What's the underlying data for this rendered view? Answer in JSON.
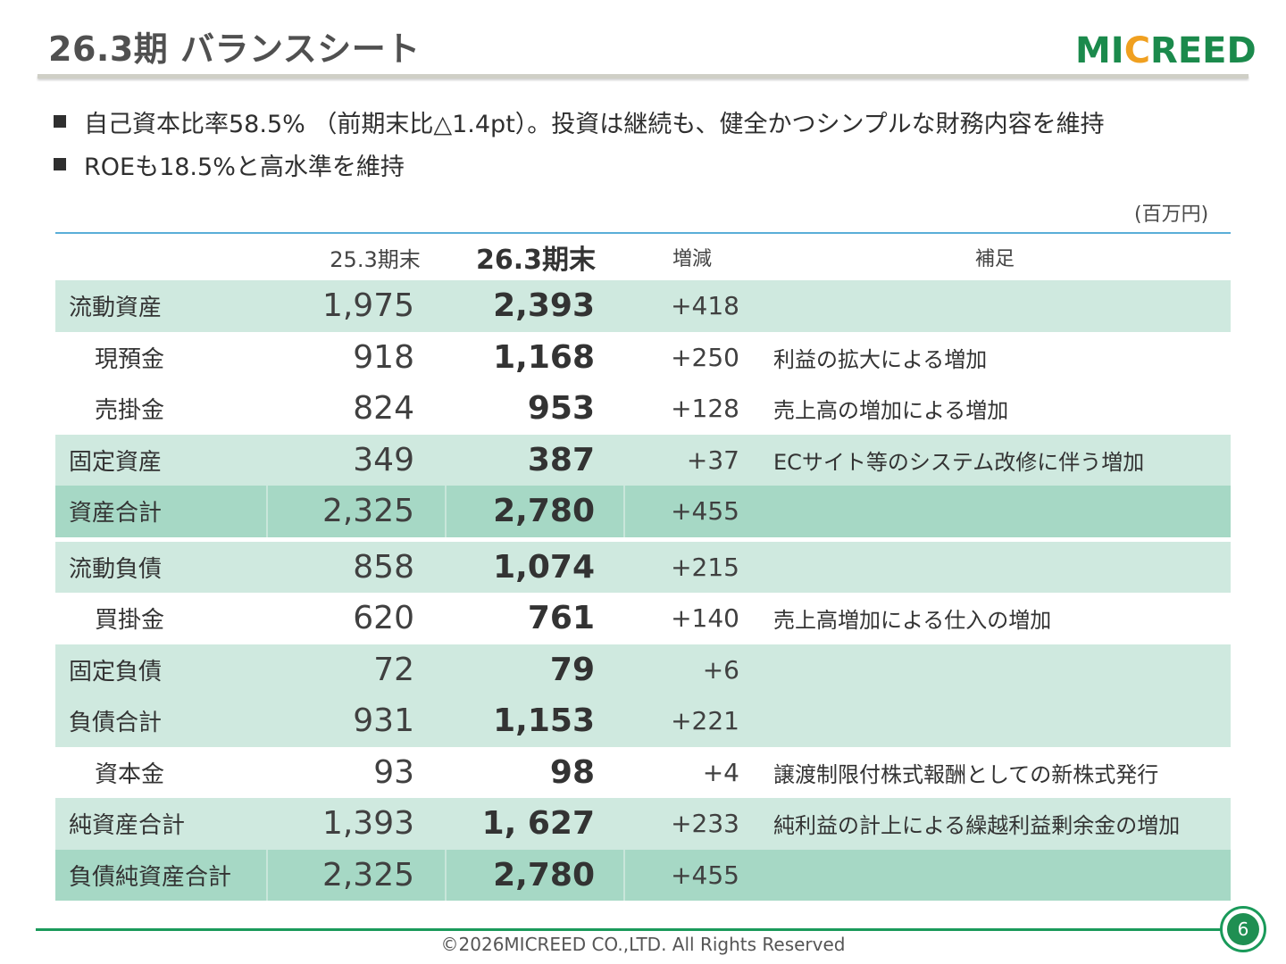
{
  "header": {
    "title": "26.3期 バランスシート",
    "logo_prefix": "MI",
    "logo_accent": "C",
    "logo_suffix": "REED"
  },
  "bullets": [
    "自己資本比率58.5% （前期末比△1.4pt）。投資は継続も、健全かつシンプルな財務内容を維持",
    "ROEも18.5%と高水準を維持"
  ],
  "unit_label": "(百万円)",
  "table": {
    "columns": {
      "prev": "25.3期末",
      "cur": "26.3期末",
      "diff": "増減",
      "note": "補足"
    },
    "rows": [
      {
        "name": "流動資産",
        "prev": "1,975",
        "cur": "2,393",
        "diff": "+418",
        "note": ""
      },
      {
        "name": "現預金",
        "prev": "918",
        "cur": "1,168",
        "diff": "+250",
        "note": "利益の拡大による増加"
      },
      {
        "name": "売掛金",
        "prev": "824",
        "cur": "953",
        "diff": "+128",
        "note": "売上高の増加による増加"
      },
      {
        "name": "固定資産",
        "prev": "349",
        "cur": "387",
        "diff": "+37",
        "note": "ECサイト等のシステム改修に伴う増加"
      },
      {
        "name": "資産合計",
        "prev": "2,325",
        "cur": "2,780",
        "diff": "+455",
        "note": ""
      },
      {
        "name": "流動負債",
        "prev": "858",
        "cur": "1,074",
        "diff": "+215",
        "note": ""
      },
      {
        "name": "買掛金",
        "prev": "620",
        "cur": "761",
        "diff": "+140",
        "note": "売上高増加による仕入の増加"
      },
      {
        "name": "固定負債",
        "prev": "72",
        "cur": "79",
        "diff": "+6",
        "note": ""
      },
      {
        "name": "負債合計",
        "prev": "931",
        "cur": "1,153",
        "diff": "+221",
        "note": ""
      },
      {
        "name": "資本金",
        "prev": "93",
        "cur": "98",
        "diff": "+4",
        "note": "譲渡制限付株式報酬としての新株式発行"
      },
      {
        "name": "純資産合計",
        "prev": "1,393",
        "cur": "1, 627",
        "diff": "+233",
        "note": "純利益の計上による繰越利益剰余金の増加"
      },
      {
        "name": "負債純資産合計",
        "prev": "2,325",
        "cur": "2,780",
        "diff": "+455",
        "note": ""
      }
    ]
  },
  "footer": {
    "copyright": "©2026MICREED CO.,LTD. All Rights Reserved",
    "page_number": "6"
  },
  "colors": {
    "accent_green": "#1a9a5a",
    "row_light": "#cfe9df",
    "row_dark": "#a6d8c5",
    "table_rule": "#5aaed8",
    "logo_accent": "#f0a020"
  }
}
